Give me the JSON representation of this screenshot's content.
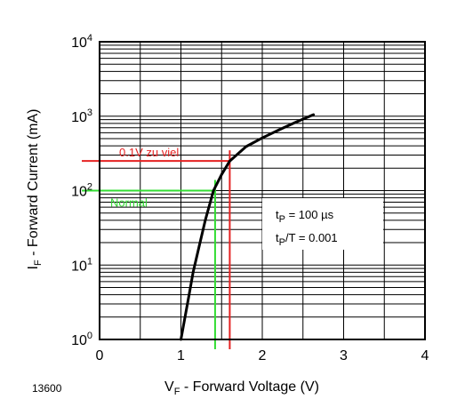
{
  "chart_data": {
    "type": "line",
    "title": "",
    "x_axis": {
      "label_main": "V",
      "label_sub": "F",
      "label_rest": " - Forward Voltage (V)",
      "range": [
        0,
        4
      ],
      "ticks": [
        0,
        1,
        2,
        3,
        4
      ],
      "grid": true
    },
    "y_axis": {
      "label_main": "I",
      "label_sub": "F",
      "label_rest": " - Forward Current (mA)",
      "scale": "log",
      "range": [
        1,
        10000
      ],
      "ticks": [
        {
          "value": 1,
          "base": "10",
          "exp": "0"
        },
        {
          "value": 10,
          "base": "10",
          "exp": "1"
        },
        {
          "value": 100,
          "base": "10",
          "exp": "2"
        },
        {
          "value": 1000,
          "base": "10",
          "exp": "3"
        },
        {
          "value": 10000,
          "base": "10",
          "exp": "4"
        }
      ],
      "grid": true
    },
    "series": [
      {
        "color": "#000000",
        "points": [
          {
            "x": 1.0,
            "y": 1
          },
          {
            "x": 1.05,
            "y": 2
          },
          {
            "x": 1.1,
            "y": 4
          },
          {
            "x": 1.15,
            "y": 8
          },
          {
            "x": 1.22,
            "y": 17
          },
          {
            "x": 1.3,
            "y": 40
          },
          {
            "x": 1.4,
            "y": 100
          },
          {
            "x": 1.5,
            "y": 165
          },
          {
            "x": 1.6,
            "y": 250
          },
          {
            "x": 1.8,
            "y": 390
          },
          {
            "x": 2.0,
            "y": 510
          },
          {
            "x": 2.2,
            "y": 650
          },
          {
            "x": 2.4,
            "y": 820
          },
          {
            "x": 2.63,
            "y": 1050
          }
        ]
      }
    ],
    "markers": [
      {
        "label": "0.1V zu viel",
        "color": "#e52222",
        "x": 1.6,
        "y": 250
      },
      {
        "label": "Normal",
        "color": "#33dd33",
        "x": 1.42,
        "y": 100
      }
    ],
    "legend_box": {
      "line1_main": "t",
      "line1_sub": "P",
      "line1_rest": " = 100 µs",
      "line2_main": "t",
      "line2_sub": "P",
      "line2_rest": "/T = 0.001"
    },
    "figure_number": "13600"
  }
}
